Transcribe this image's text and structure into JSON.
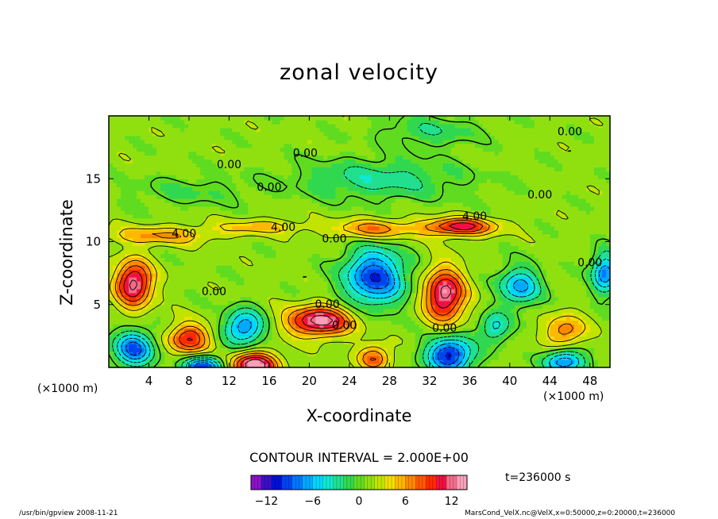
{
  "chart_data": {
    "type": "heatmap",
    "title": "zonal velocity",
    "xlabel": "X-coordinate",
    "ylabel": "Z-coordinate",
    "x_unit": "(×1000 m)",
    "x_unit_right": "(×1000 m)",
    "xlim": [
      0,
      50
    ],
    "ylim": [
      0,
      20
    ],
    "x_ticks": [
      "4",
      "8",
      "12",
      "16",
      "20",
      "24",
      "28",
      "32",
      "36",
      "40",
      "44",
      "48"
    ],
    "y_ticks": [
      "5",
      "10",
      "15"
    ],
    "contour_labels": [
      {
        "text": "0.00",
        "x": 46,
        "y": 18.7
      },
      {
        "text": "0.00",
        "x": 12,
        "y": 16.1
      },
      {
        "text": "0.00",
        "x": 19.6,
        "y": 17.0
      },
      {
        "text": "0.00",
        "x": 16,
        "y": 14.3
      },
      {
        "text": "0.00",
        "x": 43,
        "y": 13.7
      },
      {
        "text": "4.00",
        "x": 36.5,
        "y": 12.0
      },
      {
        "text": "4.00",
        "x": 7.5,
        "y": 10.6
      },
      {
        "text": "4.00",
        "x": 17.4,
        "y": 11.1
      },
      {
        "text": "0.00",
        "x": 22.5,
        "y": 10.2
      },
      {
        "text": "0.00",
        "x": 48,
        "y": 8.3
      },
      {
        "text": "0.00",
        "x": 10.5,
        "y": 6.0
      },
      {
        "text": "0.00",
        "x": 21.8,
        "y": 5.0
      },
      {
        "text": "0.00",
        "x": 23.5,
        "y": 3.3
      },
      {
        "text": "0.00",
        "x": 33.5,
        "y": 3.1
      }
    ],
    "features": [
      {
        "x": 2.5,
        "z": 6.7,
        "amp": 12,
        "sx": 1.8,
        "sz": 1.8
      },
      {
        "x": 8.0,
        "z": 2.3,
        "amp": 9,
        "sx": 2.0,
        "sz": 1.2
      },
      {
        "x": 14.5,
        "z": 0.2,
        "amp": 13,
        "sx": 2.3,
        "sz": 1.0
      },
      {
        "x": 21.0,
        "z": 3.7,
        "amp": 12,
        "sx": 3.2,
        "sz": 1.2
      },
      {
        "x": 26.5,
        "z": 0.8,
        "amp": 7,
        "sx": 1.6,
        "sz": 1.0
      },
      {
        "x": 33.5,
        "z": 5.8,
        "amp": 12,
        "sx": 2.0,
        "sz": 2.1
      },
      {
        "x": 45.5,
        "z": 2.9,
        "amp": 6,
        "sx": 2.0,
        "sz": 1.3
      },
      {
        "x": 35.0,
        "z": 11.2,
        "amp": 10,
        "sx": 3.5,
        "sz": 0.7
      },
      {
        "x": 26.5,
        "z": 11.0,
        "amp": 6,
        "sx": 4.0,
        "sz": 0.8
      },
      {
        "x": 5.0,
        "z": 10.5,
        "amp": 5,
        "sx": 5.0,
        "sz": 0.7
      },
      {
        "x": 15.0,
        "z": 11.2,
        "amp": 4,
        "sx": 4.5,
        "sz": 0.6
      },
      {
        "x": 2.5,
        "z": 1.5,
        "amp": -10,
        "sx": 2.0,
        "sz": 1.4
      },
      {
        "x": 13.5,
        "z": 3.2,
        "amp": -9,
        "sx": 1.9,
        "sz": 1.4
      },
      {
        "x": 9.5,
        "z": 0.1,
        "amp": -11,
        "sx": 2.0,
        "sz": 0.8
      },
      {
        "x": 26.5,
        "z": 7.2,
        "amp": -11,
        "sx": 3.0,
        "sz": 2.2
      },
      {
        "x": 34.0,
        "z": 1.0,
        "amp": -12,
        "sx": 2.3,
        "sz": 1.4
      },
      {
        "x": 38.5,
        "z": 3.2,
        "amp": -6,
        "sx": 1.5,
        "sz": 1.2
      },
      {
        "x": 41.0,
        "z": 6.5,
        "amp": -8,
        "sx": 2.0,
        "sz": 1.5
      },
      {
        "x": 45.5,
        "z": 0.5,
        "amp": -9,
        "sx": 2.0,
        "sz": 1.0
      },
      {
        "x": 49.5,
        "z": 7.5,
        "amp": -9,
        "sx": 1.3,
        "sz": 1.6
      },
      {
        "x": 27.0,
        "z": 15.0,
        "amp": -4,
        "sx": 8.0,
        "sz": 1.6
      },
      {
        "x": 32.0,
        "z": 18.8,
        "amp": -3,
        "sx": 5.0,
        "sz": 1.2
      },
      {
        "x": 8.0,
        "z": 14.0,
        "amp": -2,
        "sx": 6.0,
        "sz": 1.2
      }
    ],
    "colorbar": {
      "min": -14,
      "max": 14,
      "tick_labels": [
        "−12",
        "−6",
        "0",
        "6",
        "12"
      ],
      "tick_values": [
        -12,
        -6,
        0,
        6,
        12
      ],
      "colors": [
        "#8a12c8",
        "#3a10c8",
        "#0010d8",
        "#0044f0",
        "#0078ff",
        "#00a8ff",
        "#00d6ff",
        "#10e8d0",
        "#20e090",
        "#30d850",
        "#60dc20",
        "#90e010",
        "#c0e400",
        "#f0e000",
        "#ffb800",
        "#ff8800",
        "#ff5800",
        "#ff2a00",
        "#f01040",
        "#f46a8a",
        "#f8a0b8"
      ]
    }
  },
  "contour_interval": "CONTOUR INTERVAL = 2.000E+00",
  "time_label": "t=236000 s",
  "footer_left": "/usr/bin/gpview  2008-11-21",
  "footer_right": "MarsCond_VelX.nc@VelX,x=0:50000,z=0:20000,t=236000"
}
